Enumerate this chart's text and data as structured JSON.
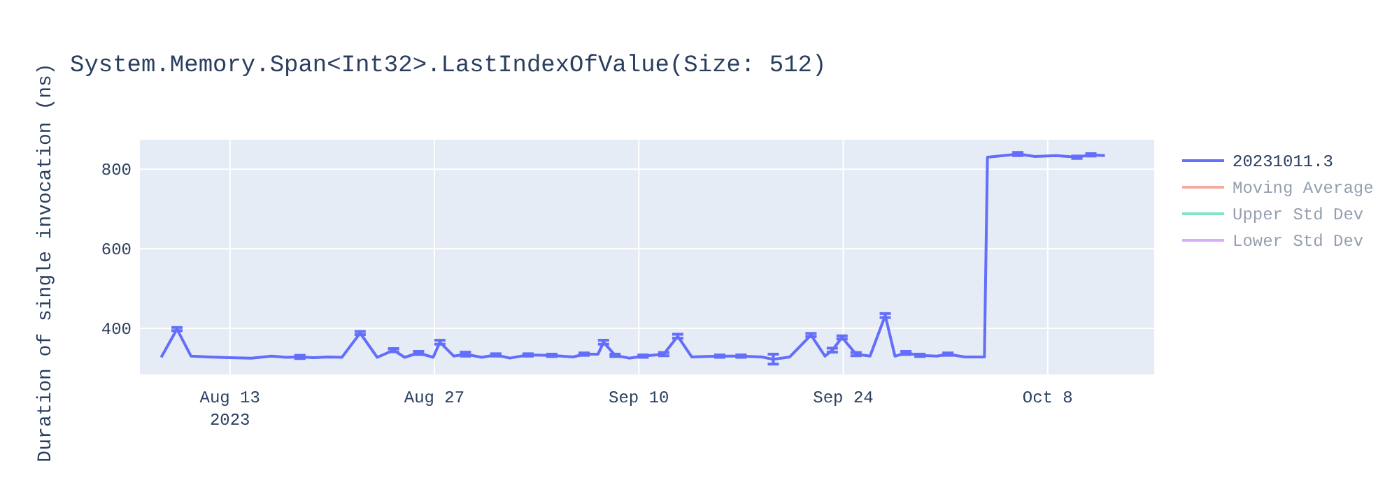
{
  "chart_data": {
    "type": "line",
    "title": "System.Memory.Span<Int32>.LastIndexOfValue(Size: 512)",
    "ylabel": "Duration of single invocation (ns)",
    "xlim": [
      "2023-08-06T20:00",
      "2023-10-15T07:00"
    ],
    "xticks": [
      {
        "value": "2023-08-13",
        "label": "Aug 13\n2023"
      },
      {
        "value": "2023-08-27",
        "label": "Aug 27"
      },
      {
        "value": "2023-09-10",
        "label": "Sep 10"
      },
      {
        "value": "2023-09-24",
        "label": "Sep 24"
      },
      {
        "value": "2023-10-08",
        "label": "Oct 8"
      }
    ],
    "ylim": [
      284,
      874
    ],
    "yticks": [
      400,
      600,
      800
    ],
    "grid": true,
    "legend": "right",
    "series": [
      {
        "name": "20231011.3",
        "color": "#636efa",
        "x": [
          "2023-08-08T07:00",
          "2023-08-09T09:00",
          "2023-08-10T08:00",
          "2023-08-11T13:00",
          "2023-08-13T00:00",
          "2023-08-14T11:00",
          "2023-08-15T21:00",
          "2023-08-16T20:00",
          "2023-08-17T19:00",
          "2023-08-18T18:00",
          "2023-08-19T17:00",
          "2023-08-20T16:00",
          "2023-08-21T22:00",
          "2023-08-23T02:00",
          "2023-08-24T05:00",
          "2023-08-24T23:00",
          "2023-08-25T22:00",
          "2023-08-26T22:00",
          "2023-08-27T09:00",
          "2023-08-28T08:00",
          "2023-08-29T03:00",
          "2023-08-30T06:00",
          "2023-08-31T05:00",
          "2023-09-01T04:00",
          "2023-09-02T10:00",
          "2023-09-04T01:00",
          "2023-09-05T12:00",
          "2023-09-06T06:00",
          "2023-09-07T05:00",
          "2023-09-07T14:00",
          "2023-09-08T09:00",
          "2023-09-09T08:00",
          "2023-09-10T07:00",
          "2023-09-11T17:00",
          "2023-09-12T16:00",
          "2023-09-13T15:00",
          "2023-09-15T13:00",
          "2023-09-17T00:00",
          "2023-09-18T10:00",
          "2023-09-19T05:00",
          "2023-09-20T08:00",
          "2023-09-21T19:00",
          "2023-09-22T18:00",
          "2023-09-23T06:00",
          "2023-09-23T22:00",
          "2023-09-24T21:00",
          "2023-09-25T20:00",
          "2023-09-26T21:00",
          "2023-09-27T13:00",
          "2023-09-28T07:00",
          "2023-09-29T06:00",
          "2023-09-30T10:00",
          "2023-10-01T04:00",
          "2023-10-02T08:00",
          "2023-10-03T16:00",
          "2023-10-03T21:00",
          "2023-10-05T05:00",
          "2023-10-05T23:00",
          "2023-10-07T03:00",
          "2023-10-08T14:00",
          "2023-10-10T00:00",
          "2023-10-10T23:00",
          "2023-10-11T22:00"
        ],
        "values": [
          327,
          398,
          330,
          328,
          326,
          325,
          330,
          327,
          328,
          326,
          328,
          327,
          388,
          327,
          345,
          327,
          338,
          327,
          365,
          330,
          335,
          327,
          333,
          325,
          333,
          332,
          328,
          335,
          335,
          365,
          332,
          325,
          330,
          335,
          380,
          328,
          330,
          330,
          328,
          322,
          328,
          383,
          330,
          345,
          377,
          335,
          330,
          432,
          330,
          338,
          332,
          330,
          335,
          328,
          328,
          830,
          835,
          838,
          832,
          834,
          830,
          836,
          834
        ],
        "errors": [
          null,
          4,
          null,
          null,
          null,
          null,
          null,
          null,
          4,
          null,
          null,
          null,
          4,
          null,
          4,
          null,
          4,
          null,
          5,
          null,
          5,
          null,
          3,
          null,
          3,
          3,
          null,
          3,
          null,
          5,
          3,
          null,
          3,
          4,
          5,
          null,
          3,
          3,
          null,
          [
            310,
            335
          ],
          null,
          4,
          null,
          5,
          4,
          4,
          null,
          5,
          null,
          4,
          3,
          null,
          3,
          null,
          null,
          null,
          null,
          4,
          null,
          null,
          3,
          3,
          null
        ]
      },
      {
        "name": "Moving Average",
        "color": "#ef553b"
      },
      {
        "name": "Upper Std Dev",
        "color": "#00cc96"
      },
      {
        "name": "Lower Std Dev",
        "color": "#ab63fa"
      }
    ]
  }
}
